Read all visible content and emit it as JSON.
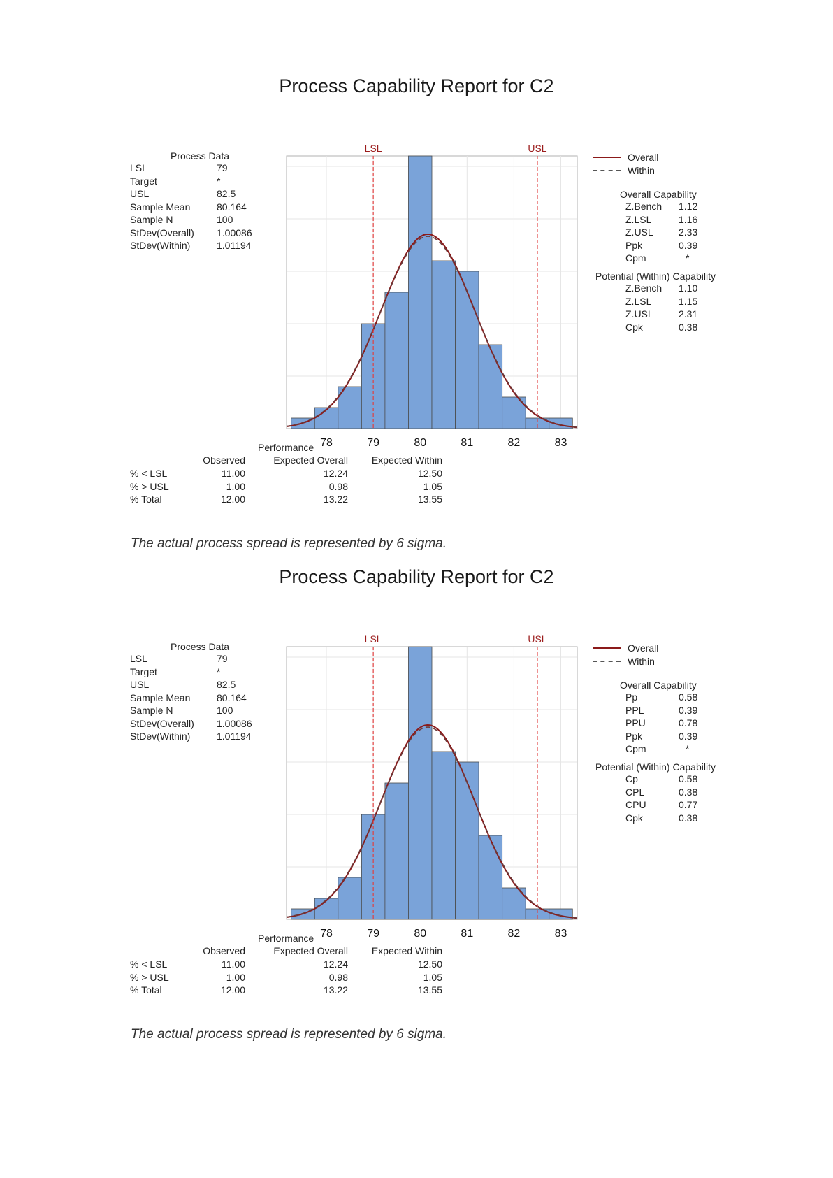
{
  "reports": [
    {
      "title": "Process Capability Report for C2",
      "process_data": {
        "heading": "Process Data",
        "rows": [
          {
            "label": "LSL",
            "value": "79"
          },
          {
            "label": "Target",
            "value": "*"
          },
          {
            "label": "USL",
            "value": "82.5"
          },
          {
            "label": "Sample Mean",
            "value": "80.164"
          },
          {
            "label": "Sample N",
            "value": "100"
          },
          {
            "label": "StDev(Overall)",
            "value": "1.00086"
          },
          {
            "label": "StDev(Within)",
            "value": "1.01194"
          }
        ]
      },
      "legend": [
        {
          "label": "Overall",
          "style": "solid"
        },
        {
          "label": "Within",
          "style": "dashed"
        }
      ],
      "overall_capability": {
        "heading": "Overall Capability",
        "rows": [
          {
            "label": "Z.Bench",
            "value": "1.12"
          },
          {
            "label": "Z.LSL",
            "value": "1.16"
          },
          {
            "label": "Z.USL",
            "value": "2.33"
          },
          {
            "label": "Ppk",
            "value": "0.39"
          },
          {
            "label": "Cpm",
            "value": "*"
          }
        ]
      },
      "within_capability": {
        "heading": "Potential (Within) Capability",
        "rows": [
          {
            "label": "Z.Bench",
            "value": "1.10"
          },
          {
            "label": "Z.LSL",
            "value": "1.15"
          },
          {
            "label": "Z.USL",
            "value": "2.31"
          },
          {
            "label": "Cpk",
            "value": "0.38"
          }
        ]
      },
      "performance": {
        "heading": "Performance",
        "columns": [
          "Observed",
          "Expected Overall",
          "Expected Within"
        ],
        "rows": [
          {
            "label": "% < LSL",
            "values": [
              "11.00",
              "12.24",
              "12.50"
            ]
          },
          {
            "label": "% > USL",
            "values": [
              "1.00",
              "0.98",
              "1.05"
            ]
          },
          {
            "label": "% Total",
            "values": [
              "12.00",
              "13.22",
              "13.55"
            ]
          }
        ]
      },
      "footnote": "The actual process spread is represented by 6 sigma."
    },
    {
      "title": "Process Capability Report for C2",
      "process_data": {
        "heading": "Process Data",
        "rows": [
          {
            "label": "LSL",
            "value": "79"
          },
          {
            "label": "Target",
            "value": "*"
          },
          {
            "label": "USL",
            "value": "82.5"
          },
          {
            "label": "Sample Mean",
            "value": "80.164"
          },
          {
            "label": "Sample N",
            "value": "100"
          },
          {
            "label": "StDev(Overall)",
            "value": "1.00086"
          },
          {
            "label": "StDev(Within)",
            "value": "1.01194"
          }
        ]
      },
      "legend": [
        {
          "label": "Overall",
          "style": "solid"
        },
        {
          "label": "Within",
          "style": "dashed"
        }
      ],
      "overall_capability": {
        "heading": "Overall Capability",
        "rows": [
          {
            "label": "Pp",
            "value": "0.58"
          },
          {
            "label": "PPL",
            "value": "0.39"
          },
          {
            "label": "PPU",
            "value": "0.78"
          },
          {
            "label": "Ppk",
            "value": "0.39"
          },
          {
            "label": "Cpm",
            "value": "*"
          }
        ]
      },
      "within_capability": {
        "heading": "Potential (Within) Capability",
        "rows": [
          {
            "label": "Cp",
            "value": "0.58"
          },
          {
            "label": "CPL",
            "value": "0.38"
          },
          {
            "label": "CPU",
            "value": "0.77"
          },
          {
            "label": "Cpk",
            "value": "0.38"
          }
        ]
      },
      "performance": {
        "heading": "Performance",
        "columns": [
          "Observed",
          "Expected Overall",
          "Expected Within"
        ],
        "rows": [
          {
            "label": "% < LSL",
            "values": [
              "11.00",
              "12.24",
              "12.50"
            ]
          },
          {
            "label": "% > USL",
            "values": [
              "1.00",
              "0.98",
              "1.05"
            ]
          },
          {
            "label": "% Total",
            "values": [
              "12.00",
              "13.22",
              "13.55"
            ]
          }
        ]
      },
      "footnote": "The actual process spread is represented by 6 sigma."
    }
  ],
  "colors": {
    "bar_fill": "#7aa3d9",
    "bar_stroke": "#4a4a4a",
    "curve": "#8b1a1a",
    "spec_line": "#e04040",
    "spec_label": "#9b1c1c",
    "grid": "#e6e6e6",
    "frame": "#b0b0b0"
  },
  "chart_data": [
    {
      "type": "bar",
      "x_ticks": [
        78,
        79,
        80,
        81,
        82,
        83
      ],
      "xlim": [
        77.15,
        83.35
      ],
      "ylim": [
        0,
        26
      ],
      "bin_edges": [
        77.25,
        77.75,
        78.25,
        78.75,
        79.25,
        79.75,
        80.25,
        80.75,
        81.25,
        81.75,
        82.25,
        82.75,
        83.25
      ],
      "counts": [
        1,
        2,
        4,
        10,
        13,
        26,
        16,
        15,
        8,
        3,
        1,
        1
      ],
      "spec_lines": [
        {
          "label": "LSL",
          "x": 79
        },
        {
          "label": "USL",
          "x": 82.5
        }
      ],
      "series": [
        {
          "name": "Overall",
          "mean": 80.164,
          "stdev": 1.00086
        },
        {
          "name": "Within",
          "mean": 80.164,
          "stdev": 1.01194
        }
      ]
    },
    {
      "type": "bar",
      "x_ticks": [
        78,
        79,
        80,
        81,
        82,
        83
      ],
      "xlim": [
        77.15,
        83.35
      ],
      "ylim": [
        0,
        26
      ],
      "bin_edges": [
        77.25,
        77.75,
        78.25,
        78.75,
        79.25,
        79.75,
        80.25,
        80.75,
        81.25,
        81.75,
        82.25,
        82.75,
        83.25
      ],
      "counts": [
        1,
        2,
        4,
        10,
        13,
        26,
        16,
        15,
        8,
        3,
        1,
        1
      ],
      "spec_lines": [
        {
          "label": "LSL",
          "x": 79
        },
        {
          "label": "USL",
          "x": 82.5
        }
      ],
      "series": [
        {
          "name": "Overall",
          "mean": 80.164,
          "stdev": 1.00086
        },
        {
          "name": "Within",
          "mean": 80.164,
          "stdev": 1.01194
        }
      ]
    }
  ]
}
